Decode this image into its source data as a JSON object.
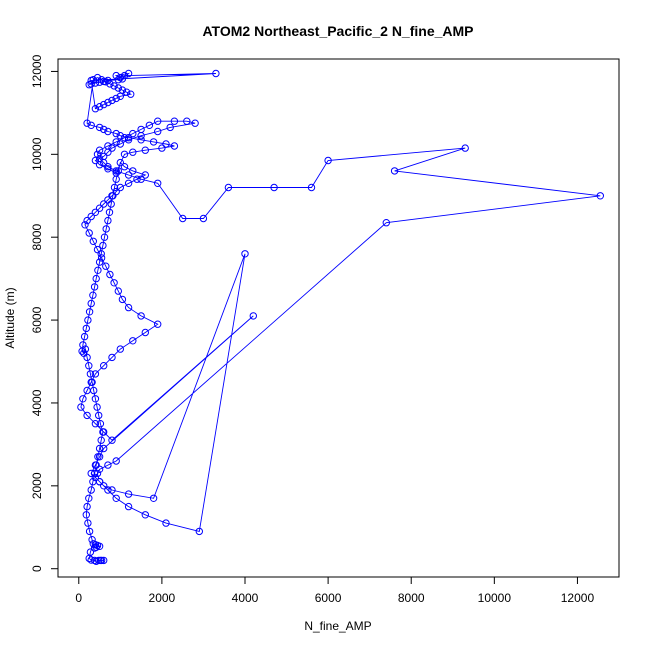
{
  "chart_data": {
    "type": "line",
    "title": "ATOM2 Northeast_Pacific_2 N_fine_AMP",
    "xlabel": "N_fine_AMP",
    "ylabel": "Altitude (m)",
    "xlim": [
      -500,
      13000
    ],
    "ylim": [
      -200,
      12300
    ],
    "xticks": [
      0,
      2000,
      4000,
      6000,
      8000,
      10000,
      12000
    ],
    "yticks": [
      0,
      2000,
      4000,
      6000,
      8000,
      10000,
      12000
    ],
    "grid": false,
    "legend": "none",
    "series_color": "#0000ff",
    "marker": "open-circle",
    "x": [
      550,
      600,
      520,
      480,
      420,
      380,
      300,
      250,
      280,
      350,
      400,
      450,
      500,
      420,
      380,
      320,
      260,
      220,
      180,
      200,
      240,
      300,
      340,
      380,
      420,
      460,
      500,
      540,
      580,
      520,
      480,
      440,
      400,
      360,
      320,
      280,
      240,
      200,
      160,
      120,
      80,
      100,
      140,
      180,
      220,
      260,
      300,
      340,
      380,
      420,
      460,
      500,
      540,
      580,
      620,
      660,
      700,
      740,
      780,
      820,
      860,
      900,
      950,
      1000,
      1100,
      1300,
      1600,
      1400,
      1200,
      1000,
      900,
      800,
      700,
      600,
      500,
      400,
      300,
      200,
      150,
      250,
      350,
      450,
      550,
      650,
      750,
      850,
      950,
      1050,
      1200,
      1500,
      1900,
      1600,
      1300,
      1000,
      800,
      600,
      400,
      300,
      200,
      100,
      50,
      200,
      400,
      600,
      800,
      4200,
      600,
      500,
      400,
      300,
      500,
      700,
      900,
      1200,
      1600,
      2100,
      2900,
      4000,
      1800,
      1200,
      800,
      600,
      500,
      400,
      450,
      500,
      700,
      900,
      7400,
      12550,
      7600,
      9300,
      6000,
      5600,
      4700,
      3600,
      3000,
      2500,
      1900,
      1500,
      1200,
      900,
      700,
      600,
      500,
      450,
      500,
      700,
      900,
      1100,
      1300,
      1500,
      1700,
      1900,
      2300,
      2600,
      2800,
      2200,
      1900,
      1500,
      1200,
      1000,
      800,
      700,
      600,
      400,
      500,
      700,
      900,
      1100,
      1300,
      1600,
      2000,
      2300,
      2100,
      1800,
      1500,
      1200,
      1000,
      900,
      700,
      600,
      500,
      300,
      200,
      350,
      450,
      550,
      650,
      750,
      850,
      950,
      1050,
      1150,
      1250,
      1000,
      900,
      800,
      700,
      600,
      500,
      400,
      300,
      3300,
      1100,
      1000,
      900,
      1200,
      1050,
      950,
      700,
      600,
      500,
      400,
      300,
      250
    ],
    "y": [
      200,
      200,
      200,
      200,
      180,
      200,
      210,
      250,
      400,
      600,
      580,
      560,
      540,
      520,
      500,
      700,
      900,
      1100,
      1300,
      1500,
      1700,
      1900,
      2100,
      2300,
      2500,
      2700,
      2900,
      3100,
      3300,
      3500,
      3700,
      3900,
      4100,
      4300,
      4500,
      4700,
      4900,
      5100,
      5300,
      5200,
      5250,
      5400,
      5600,
      5800,
      6000,
      6200,
      6400,
      6600,
      6800,
      7000,
      7200,
      7400,
      7600,
      7800,
      8000,
      8200,
      8400,
      8600,
      8800,
      9000,
      9200,
      9400,
      9600,
      9800,
      9700,
      9600,
      9500,
      9400,
      9300,
      9200,
      9100,
      9000,
      8900,
      8800,
      8700,
      8600,
      8500,
      8400,
      8300,
      8100,
      7900,
      7700,
      7500,
      7300,
      7100,
      6900,
      6700,
      6500,
      6300,
      6100,
      5900,
      5700,
      5500,
      5300,
      5100,
      4900,
      4700,
      4500,
      4300,
      4100,
      3900,
      3700,
      3500,
      3300,
      3100,
      6100,
      2900,
      2700,
      2500,
      2300,
      2100,
      1900,
      1700,
      1500,
      1300,
      1100,
      900,
      7600,
      1700,
      1800,
      1900,
      2000,
      2100,
      2200,
      2300,
      2400,
      2500,
      2600,
      8350,
      9000,
      9600,
      10150,
      9850,
      9200,
      9200,
      9200,
      8450,
      8450,
      9300,
      9400,
      9500,
      9600,
      9700,
      9800,
      9900,
      10000,
      10100,
      10200,
      10300,
      10400,
      10500,
      10600,
      10700,
      10800,
      10800,
      10800,
      10750,
      10650,
      10550,
      10450,
      10350,
      10250,
      10150,
      10050,
      9950,
      9850,
      9750,
      9650,
      9550,
      10000,
      10050,
      10100,
      10150,
      10200,
      10250,
      10300,
      10350,
      10400,
      10450,
      10500,
      10550,
      10600,
      10650,
      10700,
      10750,
      11800,
      11850,
      11800,
      11750,
      11700,
      11650,
      11600,
      11550,
      11500,
      11450,
      11400,
      11350,
      11300,
      11250,
      11200,
      11150,
      11100,
      11780,
      11950,
      11900,
      11850,
      11900,
      11950,
      11820,
      11800,
      11780,
      11760,
      11740,
      11720,
      11700,
      11680
    ]
  }
}
